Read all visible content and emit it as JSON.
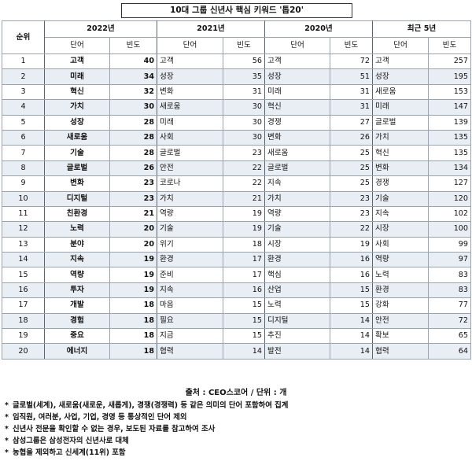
{
  "title": "10대 그룹 신년사 핵심 키워드 '톱20'",
  "header": {
    "rank_label": "순위",
    "years": [
      "2022년",
      "2021년",
      "2020년",
      "최근 5년"
    ],
    "word_label": "단어",
    "freq_label": "빈도"
  },
  "rows": [
    {
      "rank": "1",
      "w22": "고객",
      "f22": "40",
      "w21": "고객",
      "f21": "56",
      "w20": "고객",
      "f20": "72",
      "w5": "고객",
      "f5": "257"
    },
    {
      "rank": "2",
      "w22": "미래",
      "f22": "34",
      "w21": "성장",
      "f21": "35",
      "w20": "성장",
      "f20": "51",
      "w5": "성장",
      "f5": "195"
    },
    {
      "rank": "3",
      "w22": "혁신",
      "f22": "32",
      "w21": "변화",
      "f21": "31",
      "w20": "미래",
      "f20": "31",
      "w5": "새로움",
      "f5": "153"
    },
    {
      "rank": "4",
      "w22": "가치",
      "f22": "30",
      "w21": "새로움",
      "f21": "30",
      "w20": "혁신",
      "f20": "31",
      "w5": "미래",
      "f5": "147"
    },
    {
      "rank": "5",
      "w22": "성장",
      "f22": "28",
      "w21": "미래",
      "f21": "30",
      "w20": "경쟁",
      "f20": "27",
      "w5": "글로벌",
      "f5": "139"
    },
    {
      "rank": "6",
      "w22": "새로움",
      "f22": "28",
      "w21": "사회",
      "f21": "30",
      "w20": "변화",
      "f20": "26",
      "w5": "가치",
      "f5": "135"
    },
    {
      "rank": "7",
      "w22": "기술",
      "f22": "28",
      "w21": "글로벌",
      "f21": "23",
      "w20": "새로움",
      "f20": "25",
      "w5": "혁신",
      "f5": "135"
    },
    {
      "rank": "8",
      "w22": "글로벌",
      "f22": "26",
      "w21": "안전",
      "f21": "22",
      "w20": "글로벌",
      "f20": "25",
      "w5": "변화",
      "f5": "134"
    },
    {
      "rank": "9",
      "w22": "변화",
      "f22": "23",
      "w21": "코로나",
      "f21": "22",
      "w20": "지속",
      "f20": "25",
      "w5": "경쟁",
      "f5": "127"
    },
    {
      "rank": "10",
      "w22": "디지털",
      "f22": "23",
      "w21": "가치",
      "f21": "21",
      "w20": "가치",
      "f20": "23",
      "w5": "기술",
      "f5": "120"
    },
    {
      "rank": "11",
      "w22": "친환경",
      "f22": "21",
      "w21": "역량",
      "f21": "19",
      "w20": "역량",
      "f20": "23",
      "w5": "지속",
      "f5": "102"
    },
    {
      "rank": "12",
      "w22": "노력",
      "f22": "20",
      "w21": "기술",
      "f21": "19",
      "w20": "기술",
      "f20": "22",
      "w5": "시장",
      "f5": "100"
    },
    {
      "rank": "13",
      "w22": "분야",
      "f22": "20",
      "w21": "위기",
      "f21": "18",
      "w20": "시장",
      "f20": "19",
      "w5": "사회",
      "f5": "99"
    },
    {
      "rank": "14",
      "w22": "지속",
      "f22": "19",
      "w21": "환경",
      "f21": "17",
      "w20": "환경",
      "f20": "16",
      "w5": "역량",
      "f5": "97"
    },
    {
      "rank": "15",
      "w22": "역량",
      "f22": "19",
      "w21": "준비",
      "f21": "17",
      "w20": "핵심",
      "f20": "16",
      "w5": "노력",
      "f5": "83"
    },
    {
      "rank": "16",
      "w22": "투자",
      "f22": "19",
      "w21": "지속",
      "f21": "16",
      "w20": "산업",
      "f20": "15",
      "w5": "환경",
      "f5": "83"
    },
    {
      "rank": "17",
      "w22": "개발",
      "f22": "18",
      "w21": "마음",
      "f21": "15",
      "w20": "노력",
      "f20": "15",
      "w5": "강화",
      "f5": "77"
    },
    {
      "rank": "18",
      "w22": "경험",
      "f22": "18",
      "w21": "필요",
      "f21": "15",
      "w20": "디지털",
      "f20": "14",
      "w5": "안전",
      "f5": "72"
    },
    {
      "rank": "19",
      "w22": "중요",
      "f22": "18",
      "w21": "지금",
      "f21": "15",
      "w20": "추진",
      "f20": "14",
      "w5": "확보",
      "f5": "65"
    },
    {
      "rank": "20",
      "w22": "에너지",
      "f22": "18",
      "w21": "협력",
      "f21": "14",
      "w20": "발전",
      "f20": "14",
      "w5": "협력",
      "f5": "64"
    }
  ],
  "source": "출처 : CEO스코어 / 단위 : 개",
  "notes": [
    "글로벌(세계), 새로움(새로운, 새롭게), 경쟁(경쟁력) 등 같은 의미의 단어 포함하여 집계",
    "임직원, 여러분, 사업, 기업, 경영 등 통상적인 단어 제외",
    "신년사 전문을 확인할 수 없는 경우, 보도된 자료를 참고하여 조사",
    "삼성그룹은 삼성전자의 신년사로 대체",
    "농협을 제외하고 신세계(11위) 포함"
  ],
  "bullet": "*"
}
